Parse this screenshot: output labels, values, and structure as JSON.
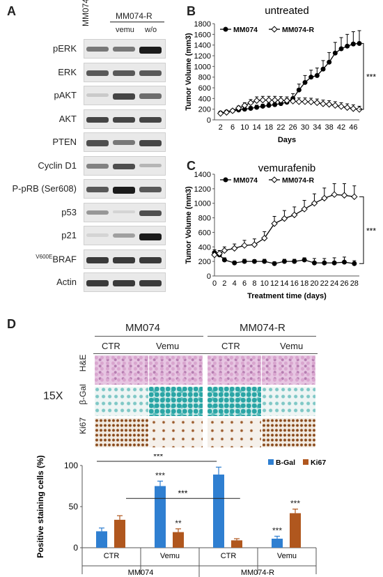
{
  "panels": {
    "a": "A",
    "b": "B",
    "c": "C",
    "d": "D"
  },
  "western_blot": {
    "lanes": {
      "lane1": "MM074",
      "group": "MM074-R",
      "lane2": "vemu",
      "lane3": "w/o"
    },
    "rows": [
      {
        "label": "pERK",
        "bands": [
          0.55,
          0.55,
          1.0
        ]
      },
      {
        "label": "ERK",
        "bands": [
          0.7,
          0.7,
          0.7
        ]
      },
      {
        "label": "pAKT",
        "bands": [
          0.15,
          0.8,
          0.6
        ]
      },
      {
        "label": "AKT",
        "bands": [
          0.8,
          0.8,
          0.8
        ]
      },
      {
        "label": "PTEN",
        "bands": [
          0.75,
          0.55,
          0.8
        ]
      },
      {
        "label": "Cyclin D1",
        "bands": [
          0.5,
          0.75,
          0.25
        ]
      },
      {
        "label": "P-pRB (Ser608)",
        "bands": [
          0.7,
          1.0,
          0.7
        ]
      },
      {
        "label": "p53",
        "bands": [
          0.4,
          0.1,
          0.75
        ]
      },
      {
        "label": "p21",
        "bands": [
          0.1,
          0.35,
          1.0
        ]
      },
      {
        "label": "V600EBRAF",
        "label_sup": "V600E",
        "label_main": "BRAF",
        "bands": [
          0.85,
          0.85,
          0.85
        ]
      },
      {
        "label": "Actin",
        "bands": [
          0.85,
          0.85,
          0.85
        ]
      }
    ]
  },
  "histology": {
    "groups": [
      "MM074",
      "MM074-R"
    ],
    "columns": [
      "CTR",
      "Vemu",
      "CTR",
      "Vemu"
    ],
    "magnification": "15X",
    "rows": [
      "H&E",
      "β-Gal",
      "Ki67"
    ]
  },
  "chart_data": [
    {
      "type": "line",
      "title": "untreated",
      "xlabel": "Days",
      "ylabel": "Tumor Volume (mm3)",
      "x": [
        2,
        4,
        6,
        8,
        10,
        12,
        14,
        16,
        18,
        20,
        22,
        24,
        26,
        28,
        30,
        32,
        34,
        36,
        38,
        40,
        42,
        44,
        46,
        48
      ],
      "xticks": [
        2,
        6,
        10,
        14,
        18,
        22,
        26,
        30,
        34,
        38,
        42,
        46
      ],
      "ylim": [
        0,
        1800
      ],
      "yticks": [
        0,
        200,
        400,
        600,
        800,
        1000,
        1200,
        1400,
        1600,
        1800
      ],
      "series": [
        {
          "name": "MM074",
          "marker": "filled",
          "values": [
            130,
            150,
            170,
            185,
            200,
            215,
            235,
            255,
            270,
            285,
            305,
            330,
            400,
            560,
            700,
            800,
            830,
            950,
            1080,
            1250,
            1330,
            1380,
            1420,
            1430
          ],
          "err": [
            20,
            25,
            30,
            30,
            35,
            35,
            40,
            40,
            45,
            50,
            60,
            70,
            90,
            110,
            130,
            130,
            140,
            160,
            180,
            200,
            210,
            220,
            230,
            240
          ]
        },
        {
          "name": "MM074-R",
          "marker": "open",
          "values": [
            120,
            140,
            170,
            220,
            270,
            320,
            360,
            370,
            370,
            370,
            365,
            360,
            350,
            340,
            340,
            335,
            320,
            300,
            290,
            270,
            250,
            230,
            210,
            195
          ],
          "err": [
            20,
            25,
            30,
            40,
            50,
            60,
            70,
            70,
            70,
            70,
            70,
            70,
            70,
            70,
            70,
            70,
            70,
            70,
            70,
            70,
            70,
            70,
            70,
            60
          ]
        }
      ],
      "legend": "top-left",
      "annotation": "***"
    },
    {
      "type": "line",
      "title": "vemurafenib",
      "xlabel": "Treatment time (days)",
      "ylabel": "Tumor Volume (mm3)",
      "x": [
        0,
        1,
        2,
        4,
        6,
        8,
        10,
        12,
        14,
        16,
        18,
        20,
        22,
        24,
        26,
        28
      ],
      "xticks": [
        0,
        2,
        4,
        6,
        8,
        10,
        12,
        14,
        16,
        18,
        20,
        22,
        24,
        26,
        28
      ],
      "ylim": [
        0,
        1400
      ],
      "yticks": [
        0,
        200,
        400,
        600,
        800,
        1000,
        1200,
        1400
      ],
      "series": [
        {
          "name": "MM074",
          "marker": "filled",
          "values": [
            320,
            290,
            220,
            180,
            200,
            200,
            200,
            170,
            200,
            200,
            220,
            180,
            180,
            180,
            190,
            170
          ],
          "err": [
            40,
            30,
            30,
            25,
            30,
            25,
            30,
            25,
            30,
            30,
            30,
            60,
            60,
            70,
            70,
            40
          ]
        },
        {
          "name": "MM074-R",
          "marker": "open",
          "values": [
            290,
            310,
            350,
            380,
            420,
            430,
            520,
            720,
            790,
            840,
            920,
            1000,
            1070,
            1120,
            1110,
            1090
          ],
          "err": [
            40,
            40,
            50,
            60,
            70,
            80,
            90,
            100,
            110,
            110,
            120,
            130,
            140,
            150,
            160,
            150
          ]
        }
      ],
      "legend": "top-left",
      "annotation": "***"
    },
    {
      "type": "bar",
      "ylabel": "Positive staining cells (%)",
      "ylim": [
        0,
        100
      ],
      "yticks": [
        0,
        50,
        100
      ],
      "categories": [
        "CTR",
        "Vemu",
        "CTR",
        "Vemu"
      ],
      "groups": [
        "MM074",
        "MM074-R"
      ],
      "series": [
        {
          "name": "B-Gal",
          "color": "#2f7fd1",
          "values": [
            20,
            75,
            89,
            11
          ],
          "err": [
            4,
            6,
            9,
            3
          ],
          "sig": [
            "",
            "***",
            "",
            "***"
          ]
        },
        {
          "name": "Ki67",
          "color": "#b0571e",
          "values": [
            34,
            19,
            9,
            42
          ],
          "err": [
            5,
            4,
            2,
            5
          ],
          "sig": [
            "",
            "**",
            "",
            "***"
          ]
        }
      ],
      "comparisons": [
        "***",
        "***"
      ],
      "legend": "top-right"
    }
  ]
}
